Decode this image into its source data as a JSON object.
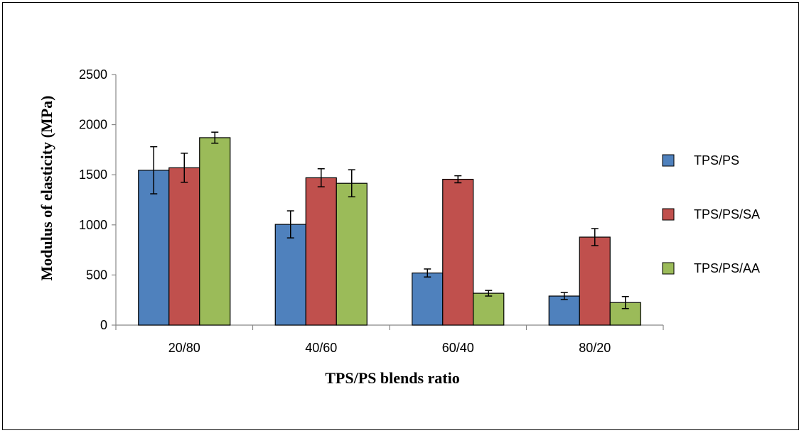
{
  "chart_data": {
    "type": "bar",
    "title": "",
    "xlabel": "TPS/PS blends ratio",
    "ylabel": "Modulus of elasticity (MPa)",
    "categories": [
      "20/80",
      "40/60",
      "60/40",
      "80/20"
    ],
    "ylim": [
      0,
      2500
    ],
    "yticks": [
      0,
      500,
      1000,
      1500,
      2000,
      2500
    ],
    "grid": false,
    "legend_position": "right",
    "series": [
      {
        "name": "TPS/PS",
        "color": "#4f81bd",
        "values": [
          1545,
          1005,
          520,
          290
        ],
        "errors": [
          235,
          135,
          40,
          35
        ]
      },
      {
        "name": "TPS/PS/SA",
        "color": "#c0504d",
        "values": [
          1570,
          1470,
          1455,
          878
        ],
        "errors": [
          145,
          90,
          35,
          85
        ]
      },
      {
        "name": "TPS/PS/AA",
        "color": "#9bbb59",
        "values": [
          1870,
          1415,
          318,
          225
        ],
        "errors": [
          55,
          135,
          28,
          60
        ]
      }
    ]
  }
}
